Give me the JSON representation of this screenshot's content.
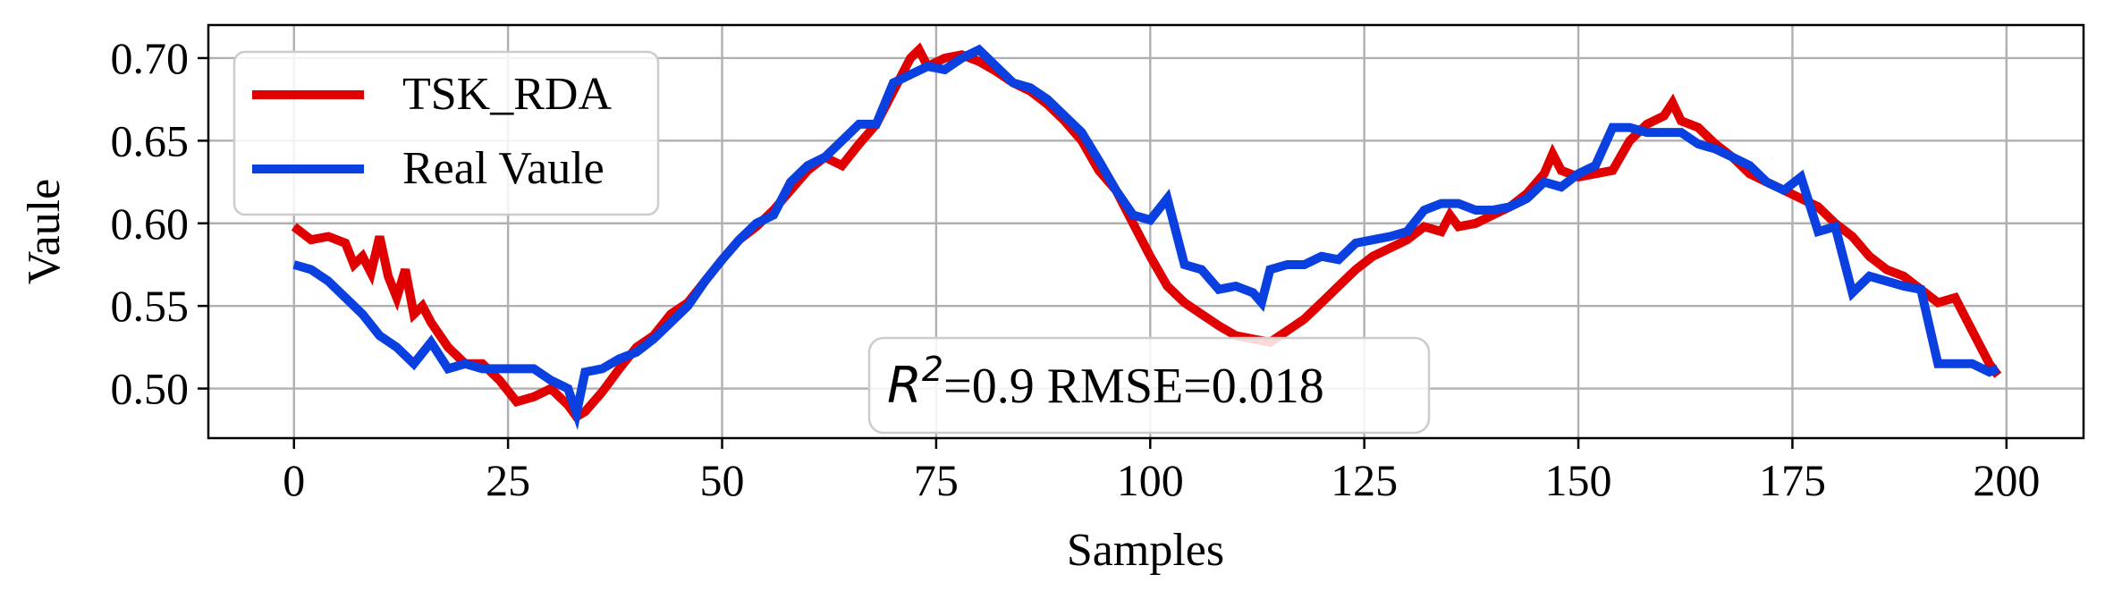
{
  "chart_data": {
    "type": "line",
    "title": "",
    "xlabel": "Samples",
    "ylabel": "Vaule",
    "xlim": [
      -10,
      209
    ],
    "ylim": [
      0.47,
      0.72
    ],
    "xticks": [
      0,
      25,
      50,
      75,
      100,
      125,
      150,
      175,
      200
    ],
    "xtick_labels": [
      "0",
      "25",
      "50",
      "75",
      "100",
      "125",
      "150",
      "175",
      "200"
    ],
    "yticks": [
      0.5,
      0.55,
      0.6,
      0.65,
      0.7
    ],
    "ytick_labels": [
      "0.50",
      "0.55",
      "0.60",
      "0.65",
      "0.70"
    ],
    "grid": true,
    "legend_position": "top-left",
    "annotation": {
      "r2_symbol": "R",
      "r2_exponent": "2",
      "text": "=0.9 RMSE=0.018"
    },
    "series": [
      {
        "name": "TSK_RDA",
        "color": "#e00000",
        "x": [
          0,
          2,
          4,
          6,
          7,
          8,
          9,
          10,
          11,
          12,
          13,
          14,
          15,
          16,
          18,
          20,
          22,
          24,
          26,
          28,
          30,
          32,
          33,
          34,
          36,
          38,
          40,
          42,
          44,
          46,
          48,
          50,
          52,
          54,
          56,
          58,
          60,
          62,
          64,
          66,
          68,
          70,
          72,
          73,
          74,
          76,
          78,
          80,
          82,
          84,
          86,
          88,
          90,
          92,
          94,
          96,
          98,
          100,
          102,
          104,
          106,
          108,
          110,
          112,
          114,
          116,
          118,
          120,
          122,
          124,
          126,
          128,
          130,
          132,
          134,
          135,
          136,
          138,
          140,
          142,
          144,
          146,
          147,
          148,
          150,
          152,
          154,
          156,
          158,
          160,
          161,
          162,
          164,
          166,
          168,
          170,
          172,
          174,
          176,
          178,
          180,
          182,
          184,
          186,
          188,
          190,
          192,
          194,
          196,
          198,
          199
        ],
        "y": [
          0.598,
          0.59,
          0.592,
          0.588,
          0.575,
          0.58,
          0.57,
          0.592,
          0.568,
          0.555,
          0.572,
          0.545,
          0.55,
          0.54,
          0.525,
          0.515,
          0.515,
          0.505,
          0.492,
          0.495,
          0.5,
          0.49,
          0.483,
          0.486,
          0.498,
          0.512,
          0.525,
          0.532,
          0.545,
          0.552,
          0.565,
          0.578,
          0.59,
          0.598,
          0.608,
          0.62,
          0.632,
          0.64,
          0.635,
          0.648,
          0.66,
          0.68,
          0.7,
          0.705,
          0.695,
          0.7,
          0.702,
          0.698,
          0.692,
          0.685,
          0.68,
          0.672,
          0.662,
          0.65,
          0.632,
          0.62,
          0.6,
          0.58,
          0.562,
          0.552,
          0.545,
          0.538,
          0.532,
          0.53,
          0.528,
          0.535,
          0.542,
          0.552,
          0.562,
          0.572,
          0.58,
          0.585,
          0.59,
          0.598,
          0.595,
          0.605,
          0.598,
          0.6,
          0.605,
          0.61,
          0.618,
          0.63,
          0.642,
          0.632,
          0.628,
          0.63,
          0.632,
          0.65,
          0.66,
          0.665,
          0.673,
          0.662,
          0.658,
          0.648,
          0.64,
          0.63,
          0.625,
          0.62,
          0.615,
          0.61,
          0.6,
          0.592,
          0.58,
          0.572,
          0.568,
          0.56,
          0.552,
          0.555,
          0.535,
          0.515,
          0.508
        ]
      },
      {
        "name": "Real Vaule",
        "color": "#0a3fe0",
        "x": [
          0,
          2,
          4,
          6,
          8,
          10,
          12,
          14,
          16,
          18,
          20,
          22,
          24,
          26,
          28,
          30,
          32,
          33,
          34,
          36,
          38,
          40,
          42,
          44,
          46,
          48,
          50,
          52,
          54,
          56,
          58,
          60,
          62,
          64,
          66,
          68,
          70,
          72,
          74,
          76,
          78,
          80,
          82,
          84,
          86,
          88,
          90,
          92,
          94,
          96,
          98,
          100,
          102,
          104,
          106,
          108,
          110,
          112,
          113,
          114,
          116,
          118,
          120,
          122,
          124,
          126,
          128,
          130,
          132,
          134,
          136,
          138,
          140,
          142,
          144,
          146,
          148,
          150,
          152,
          154,
          156,
          158,
          160,
          162,
          164,
          166,
          168,
          170,
          172,
          174,
          176,
          178,
          180,
          182,
          184,
          186,
          188,
          190,
          192,
          194,
          196,
          198,
          199
        ],
        "y": [
          0.575,
          0.572,
          0.565,
          0.555,
          0.545,
          0.532,
          0.525,
          0.515,
          0.528,
          0.512,
          0.515,
          0.512,
          0.512,
          0.512,
          0.512,
          0.505,
          0.5,
          0.485,
          0.51,
          0.512,
          0.518,
          0.522,
          0.53,
          0.54,
          0.55,
          0.565,
          0.578,
          0.59,
          0.6,
          0.605,
          0.625,
          0.635,
          0.64,
          0.65,
          0.66,
          0.66,
          0.685,
          0.69,
          0.695,
          0.693,
          0.7,
          0.705,
          0.695,
          0.685,
          0.682,
          0.675,
          0.665,
          0.655,
          0.638,
          0.62,
          0.605,
          0.602,
          0.615,
          0.575,
          0.572,
          0.56,
          0.562,
          0.558,
          0.552,
          0.572,
          0.575,
          0.575,
          0.58,
          0.578,
          0.588,
          0.59,
          0.592,
          0.595,
          0.608,
          0.612,
          0.612,
          0.608,
          0.608,
          0.61,
          0.615,
          0.625,
          0.622,
          0.63,
          0.635,
          0.658,
          0.658,
          0.655,
          0.655,
          0.655,
          0.648,
          0.645,
          0.64,
          0.635,
          0.625,
          0.62,
          0.628,
          0.595,
          0.598,
          0.558,
          0.568,
          0.565,
          0.562,
          0.56,
          0.515,
          0.515,
          0.515,
          0.51,
          0.512
        ]
      }
    ]
  }
}
